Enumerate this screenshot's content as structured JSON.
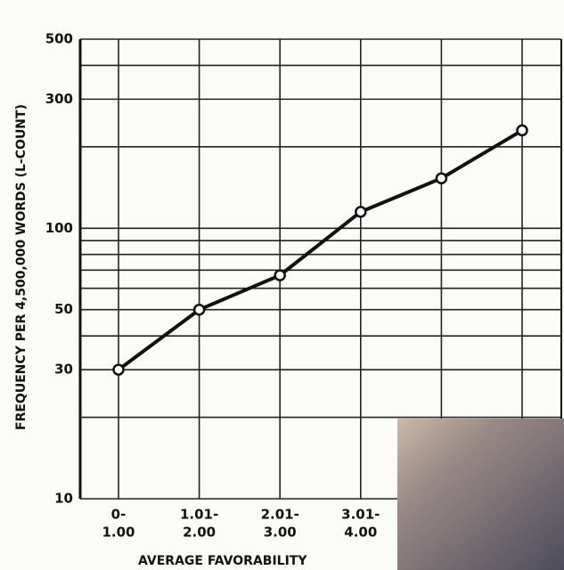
{
  "chart_data": {
    "type": "line",
    "y_label": "FREQUENCY PER 4,500,000 WORDS (L-COUNT)",
    "x_label": "AVERAGE FAVORABILITY",
    "categories": [
      [
        "0-",
        "1.00"
      ],
      [
        "1.01-",
        "2.00"
      ],
      [
        "2.01-",
        "3.00"
      ],
      [
        "3.01-",
        "4.00"
      ],
      null,
      null
    ],
    "values": [
      30,
      50,
      67,
      115,
      153,
      230
    ],
    "color": "#111111",
    "log_y": true,
    "ylim": [
      10,
      500
    ],
    "yticks": [
      10,
      30,
      50,
      100,
      300,
      500
    ],
    "minor_yticks": [
      20,
      40,
      60,
      70,
      80,
      90,
      200,
      400
    ],
    "grid": true
  }
}
